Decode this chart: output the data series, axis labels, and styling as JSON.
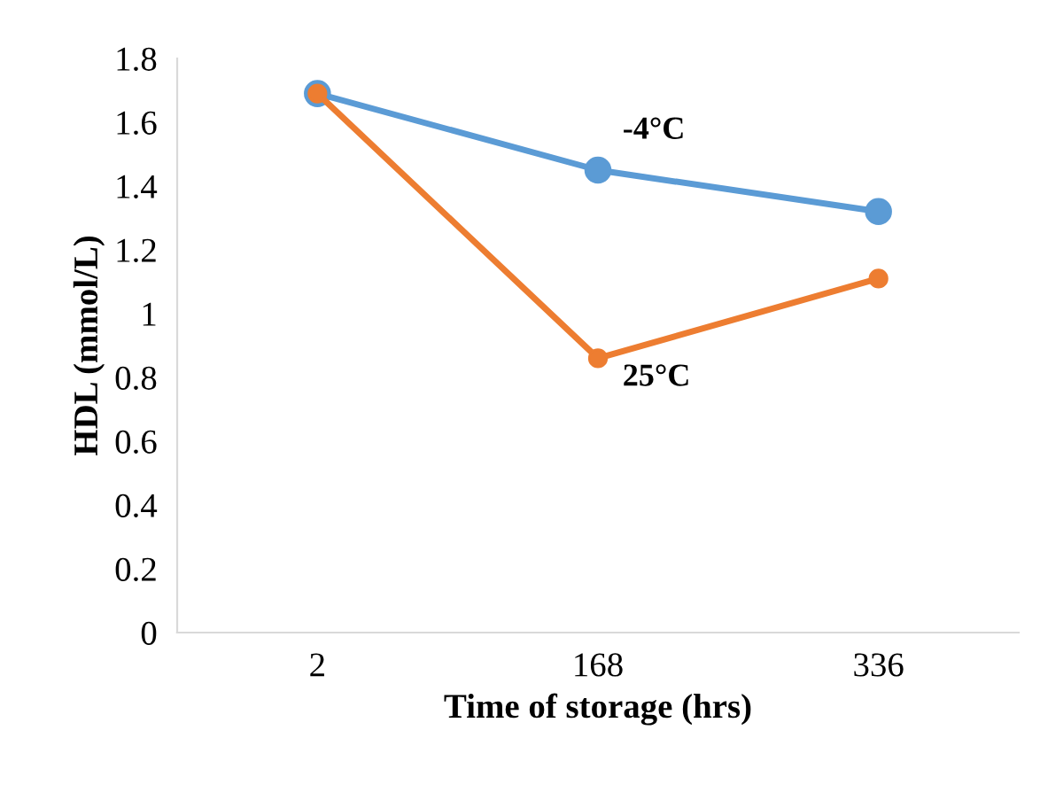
{
  "chart_data": {
    "type": "line",
    "xlabel": "Time of storage (hrs)",
    "ylabel": "HDL (mmol/L)",
    "categories": [
      "2",
      "168",
      "336"
    ],
    "series": [
      {
        "name": "-4°C",
        "color": "#5b9bd5",
        "values": [
          1.69,
          1.45,
          1.32
        ]
      },
      {
        "name": "25°C",
        "color": "#ed7d31",
        "values": [
          1.69,
          0.86,
          1.11
        ]
      }
    ],
    "ylim": [
      0,
      1.8
    ],
    "yticks": [
      0,
      0.2,
      0.4,
      0.6,
      0.8,
      1,
      1.2,
      1.4,
      1.6,
      1.8
    ],
    "marker": "circle",
    "grid": false,
    "legend": false
  }
}
